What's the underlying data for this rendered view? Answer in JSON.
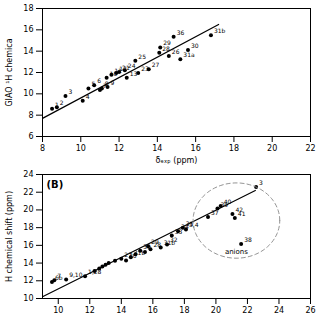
{
  "chart_data": [
    {
      "type": "scatter",
      "x_label": "δₑₓₚ (ppm)",
      "y_label": "GIAO ¹H chemica",
      "xlim": [
        8,
        22
      ],
      "xticks": [
        8,
        10,
        12,
        14,
        16,
        18,
        20,
        22
      ],
      "ylim": [
        6,
        18
      ],
      "yticks": [
        6,
        8,
        10,
        12,
        14,
        16,
        18
      ],
      "series": [
        {
          "type": "line",
          "x": [
            8.0,
            17.2
          ],
          "y": [
            7.7,
            16.5
          ]
        },
        {
          "type": "scatter",
          "x": [
            8.5,
            8.75,
            9.2,
            10.1,
            10.4,
            10.7,
            11.0,
            11.1,
            11.4,
            11.35,
            11.6,
            11.85,
            12.4,
            12.0,
            12.3,
            13.0,
            12.85,
            13.55,
            14.1,
            14.15,
            14.6,
            15.6,
            15.2,
            16.8,
            14.85
          ],
          "y": [
            8.6,
            8.75,
            9.8,
            9.35,
            10.5,
            10.8,
            10.35,
            10.5,
            10.65,
            11.5,
            11.8,
            11.95,
            11.5,
            12.05,
            12.2,
            11.95,
            13.1,
            12.3,
            13.85,
            14.35,
            13.55,
            14.1,
            13.25,
            15.5,
            15.35
          ],
          "labels": [
            "1",
            "2",
            "3",
            "4",
            "5",
            "6",
            "7",
            "8",
            "9",
            "10",
            "11",
            "12",
            "13",
            "21",
            "24",
            "23",
            "25",
            "27",
            "28",
            "29",
            "26",
            "30",
            "31a",
            "31b",
            "36"
          ]
        }
      ]
    },
    {
      "type": "scatter",
      "y_label": "H chemical shift (ppm)",
      "xlim": [
        9,
        26
      ],
      "xticks": [
        10,
        12,
        14,
        16,
        18,
        20,
        22,
        24,
        26
      ],
      "ylim": [
        10,
        24
      ],
      "yticks": [
        10,
        12,
        14,
        16,
        18,
        20,
        22,
        24
      ],
      "series": [
        {
          "type": "line",
          "x": [
            9.0,
            22.5
          ],
          "y": [
            10.2,
            22.2
          ]
        },
        {
          "type": "scatter",
          "x": [
            9.6,
            9.75,
            10.5,
            11.7,
            12.3,
            12.6,
            12.8,
            13.0,
            13.2,
            13.6,
            14.0,
            14.3,
            14.6,
            14.9,
            15.2,
            15.5,
            15.7,
            15.85,
            16.5,
            16.9,
            17.2,
            17.6,
            17.9,
            18.1,
            19.5,
            20.1,
            20.3,
            21.05,
            21.2,
            22.55,
            21.6
          ],
          "y": [
            11.85,
            12.05,
            12.15,
            12.5,
            13.1,
            13.4,
            13.6,
            13.8,
            14.0,
            14.25,
            14.5,
            14.3,
            14.65,
            15.0,
            15.4,
            15.25,
            15.9,
            15.55,
            15.75,
            16.1,
            17.1,
            17.6,
            18.0,
            17.8,
            19.2,
            20.15,
            20.45,
            19.55,
            19.1,
            22.6,
            16.15
          ],
          "labels": [
            "6b",
            "7",
            "9,10",
            "1,28",
            null,
            null,
            null,
            null,
            null,
            null,
            "27",
            "36",
            "31b",
            null,
            "30",
            null,
            "29",
            "28",
            "31b",
            "32",
            "33",
            "34",
            "35",
            "3,4",
            "37",
            "39",
            "40",
            "42",
            "41",
            "3",
            "38"
          ]
        }
      ],
      "ellipse": {
        "cx": 21.3,
        "cy": 18.8,
        "width": 5.5,
        "height": 8.5,
        "color": "#888888",
        "line_style": "dashed",
        "text": "anions"
      },
      "annotations": [
        {
          "text": "(B)"
        }
      ]
    }
  ]
}
